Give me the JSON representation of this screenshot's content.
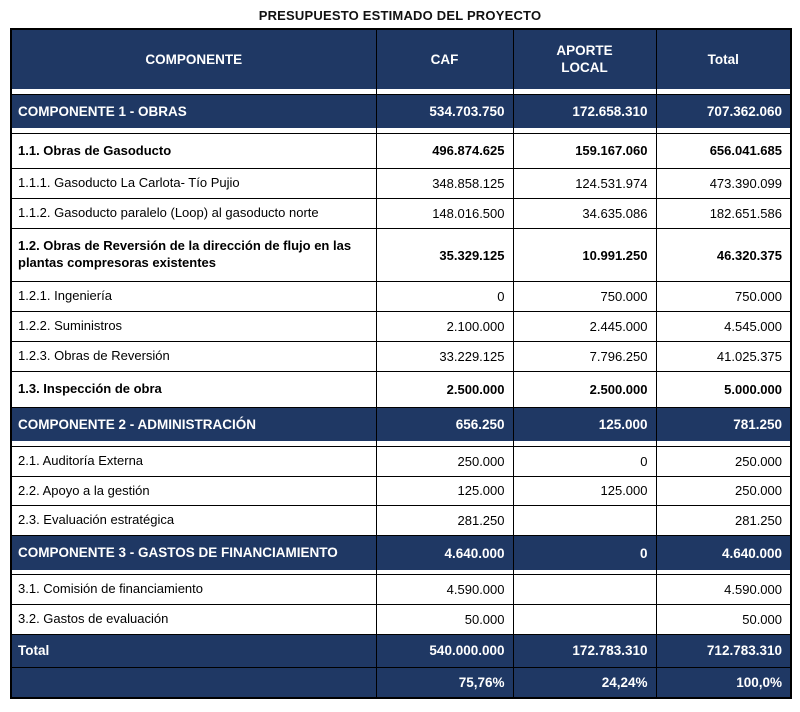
{
  "title": "PRESUPUESTO ESTIMADO DEL PROYECTO",
  "colors": {
    "header_bg": "#1f3864",
    "header_text": "#ffffff",
    "border": "#000000"
  },
  "table": {
    "columns": [
      "COMPONENTE",
      "CAF",
      "APORTE\nLOCAL",
      "Total"
    ],
    "rows": [
      {
        "label": "COMPONENTE 1 - OBRAS",
        "caf": "534.703.750",
        "local": "172.658.310",
        "total": "707.362.060",
        "style": "section",
        "spacer_after": true
      },
      {
        "label": "1.1. Obras de Gasoducto",
        "caf": "496.874.625",
        "local": "159.167.060",
        "total": "656.041.685",
        "style": "subtotal",
        "spacer_after": false
      },
      {
        "label": "1.1.1. Gasoducto La Carlota- Tío Pujio",
        "caf": "348.858.125",
        "local": "124.531.974",
        "total": "473.390.099",
        "style": "item",
        "spacer_after": false
      },
      {
        "label": "1.1.2. Gasoducto paralelo (Loop) al gasoducto norte",
        "caf": "148.016.500",
        "local": "34.635.086",
        "total": "182.651.586",
        "style": "item",
        "spacer_after": false
      },
      {
        "label": "1.2. Obras de Reversión de la dirección de flujo en las plantas compresoras existentes",
        "caf": "35.329.125",
        "local": "10.991.250",
        "total": "46.320.375",
        "style": "subtotal",
        "spacer_after": false
      },
      {
        "label": "1.2.1. Ingeniería",
        "caf": "0",
        "local": "750.000",
        "total": "750.000",
        "style": "item",
        "spacer_after": false
      },
      {
        "label": "1.2.2. Suministros",
        "caf": "2.100.000",
        "local": "2.445.000",
        "total": "4.545.000",
        "style": "item",
        "spacer_after": false
      },
      {
        "label": "1.2.3. Obras de Reversión",
        "caf": "33.229.125",
        "local": "7.796.250",
        "total": "41.025.375",
        "style": "item",
        "spacer_after": false
      },
      {
        "label": "1.3. Inspección de obra",
        "caf": "2.500.000",
        "local": "2.500.000",
        "total": "5.000.000",
        "style": "subtotal",
        "spacer_after": false
      },
      {
        "label": "COMPONENTE 2 - ADMINISTRACIÓN",
        "caf": "656.250",
        "local": "125.000",
        "total": "781.250",
        "style": "section",
        "spacer_after": true
      },
      {
        "label": "2.1. Auditoría Externa",
        "caf": "250.000",
        "local": "0",
        "total": "250.000",
        "style": "item",
        "spacer_after": false
      },
      {
        "label": "2.2. Apoyo a la gestión",
        "caf": "125.000",
        "local": "125.000",
        "total": "250.000",
        "style": "item",
        "spacer_after": false
      },
      {
        "label": "2.3. Evaluación estratégica",
        "caf": "281.250",
        "local": "",
        "total": "281.250",
        "style": "item",
        "spacer_after": false
      },
      {
        "label": "COMPONENTE 3 - GASTOS DE FINANCIAMIENTO",
        "caf": "4.640.000",
        "local": "0",
        "total": "4.640.000",
        "style": "section",
        "spacer_after": true
      },
      {
        "label": "3.1. Comisión de financiamiento",
        "caf": "4.590.000",
        "local": "",
        "total": "4.590.000",
        "style": "item",
        "spacer_after": false
      },
      {
        "label": "3.2. Gastos de evaluación",
        "caf": "50.000",
        "local": "",
        "total": "50.000",
        "style": "item",
        "spacer_after": false
      },
      {
        "label": "Total",
        "caf": "540.000.000",
        "local": "172.783.310",
        "total": "712.783.310",
        "style": "total",
        "spacer_after": false
      },
      {
        "label": "",
        "caf": "75,76%",
        "local": "24,24%",
        "total": "100,0%",
        "style": "percent",
        "spacer_after": false
      }
    ]
  }
}
